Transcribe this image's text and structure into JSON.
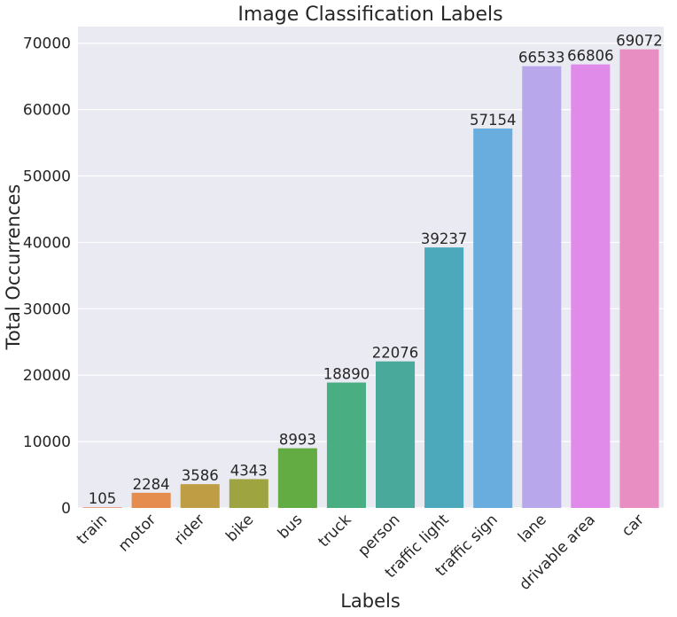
{
  "chart_data": {
    "type": "bar",
    "title": "Image Classification Labels",
    "xlabel": "Labels",
    "ylabel": "Total Occurrences",
    "categories": [
      "train",
      "motor",
      "rider",
      "bike",
      "bus",
      "truck",
      "person",
      "traffic light",
      "traffic sign",
      "lane",
      "drivable area",
      "car"
    ],
    "values": [
      105,
      2284,
      3586,
      4343,
      8993,
      18890,
      22076,
      39237,
      57154,
      66533,
      66806,
      69072
    ],
    "colors": [
      "#e98d6b",
      "#e58d4f",
      "#be9d44",
      "#9ea440",
      "#62ac43",
      "#49ae81",
      "#49a99b",
      "#4ca9bb",
      "#69adde",
      "#b8a7ea",
      "#e08ae9",
      "#e98ec3"
    ],
    "ylim": [
      0,
      72500
    ],
    "yticks": [
      0,
      10000,
      20000,
      30000,
      40000,
      50000,
      60000,
      70000
    ],
    "grid": true,
    "plot_background": "#eaeaf2"
  }
}
